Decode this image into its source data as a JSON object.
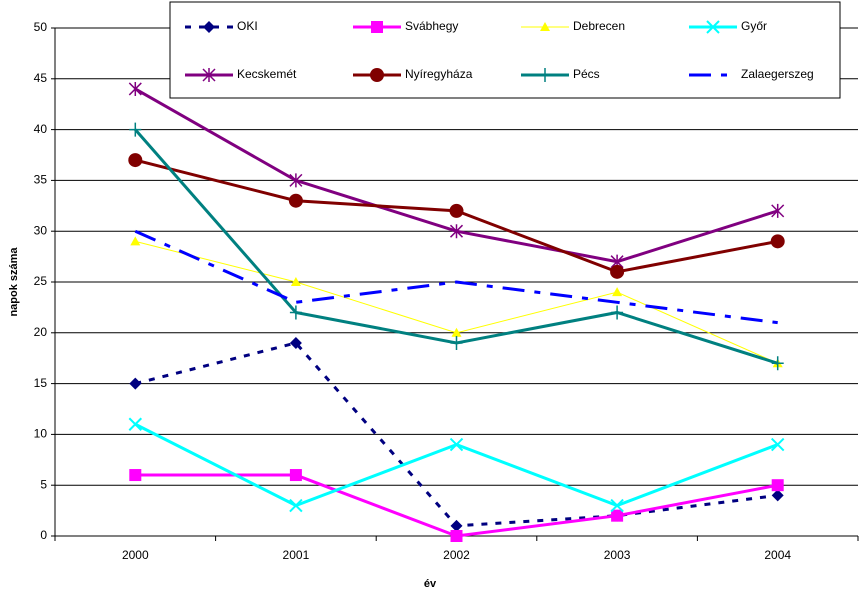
{
  "chart_data": {
    "type": "line",
    "x_label": "év",
    "y_label": "napok száma",
    "categories": [
      "2000",
      "2001",
      "2002",
      "2003",
      "2004"
    ],
    "series": [
      {
        "name": "OKI",
        "color": "#000080",
        "marker": "diamond",
        "dash": "short",
        "values": [
          15,
          19,
          1,
          2,
          4
        ]
      },
      {
        "name": "Svábhegy",
        "color": "#ff00ff",
        "marker": "square",
        "dash": "solid",
        "values": [
          6,
          6,
          0,
          2,
          5
        ]
      },
      {
        "name": "Debrecen",
        "color": "#ffff00",
        "marker": "triangle",
        "dash": "thin",
        "values": [
          29,
          25,
          20,
          24,
          17
        ]
      },
      {
        "name": "Győr",
        "color": "#00ffff",
        "marker": "x",
        "dash": "solid",
        "values": [
          11,
          3,
          9,
          3,
          9
        ]
      },
      {
        "name": "Kecskemét",
        "color": "#800080",
        "marker": "star",
        "dash": "solid",
        "values": [
          44,
          35,
          30,
          27,
          32
        ]
      },
      {
        "name": "Nyíregyháza",
        "color": "#800000",
        "marker": "circle",
        "dash": "solid",
        "values": [
          37,
          33,
          32,
          26,
          29
        ]
      },
      {
        "name": "Pécs",
        "color": "#008080",
        "marker": "plus",
        "dash": "solid",
        "values": [
          40,
          22,
          19,
          22,
          17
        ]
      },
      {
        "name": "Zalaegerszeg",
        "color": "#0000ff",
        "marker": "none",
        "dash": "long",
        "values": [
          30,
          23,
          25,
          23,
          21
        ]
      }
    ],
    "ylim": [
      0,
      50
    ],
    "yticks": [
      0,
      5,
      10,
      15,
      20,
      25,
      30,
      35,
      40,
      45,
      50
    ],
    "grid": true
  }
}
